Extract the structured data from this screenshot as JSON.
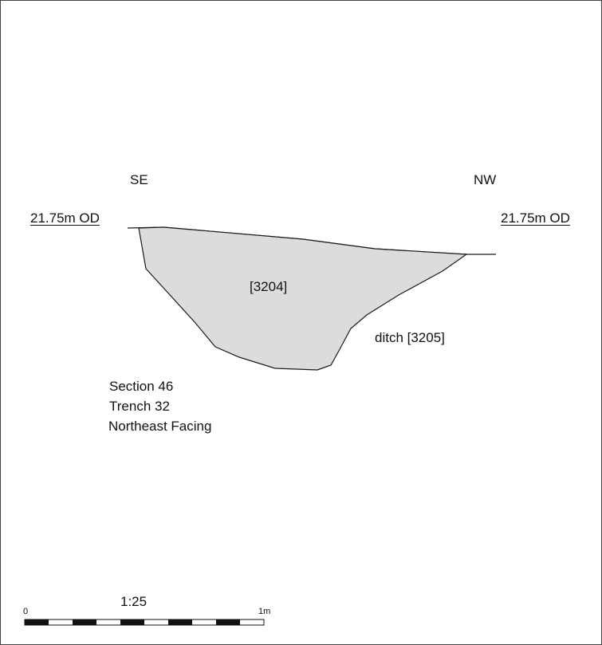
{
  "orientation": {
    "left": "SE",
    "right": "NW"
  },
  "datum": {
    "left": "21.75m OD",
    "right": "21.75m OD"
  },
  "fill_label": "[3204]",
  "cut_label": "ditch [3205]",
  "caption": {
    "section": "Section 46",
    "trench": "Trench 32",
    "facing": "Northeast Facing"
  },
  "scale": {
    "ratio": "1:25",
    "start": "0",
    "end": "1m"
  },
  "colors": {
    "fill": "#dcdcdc",
    "line": "#1a1a1a"
  }
}
